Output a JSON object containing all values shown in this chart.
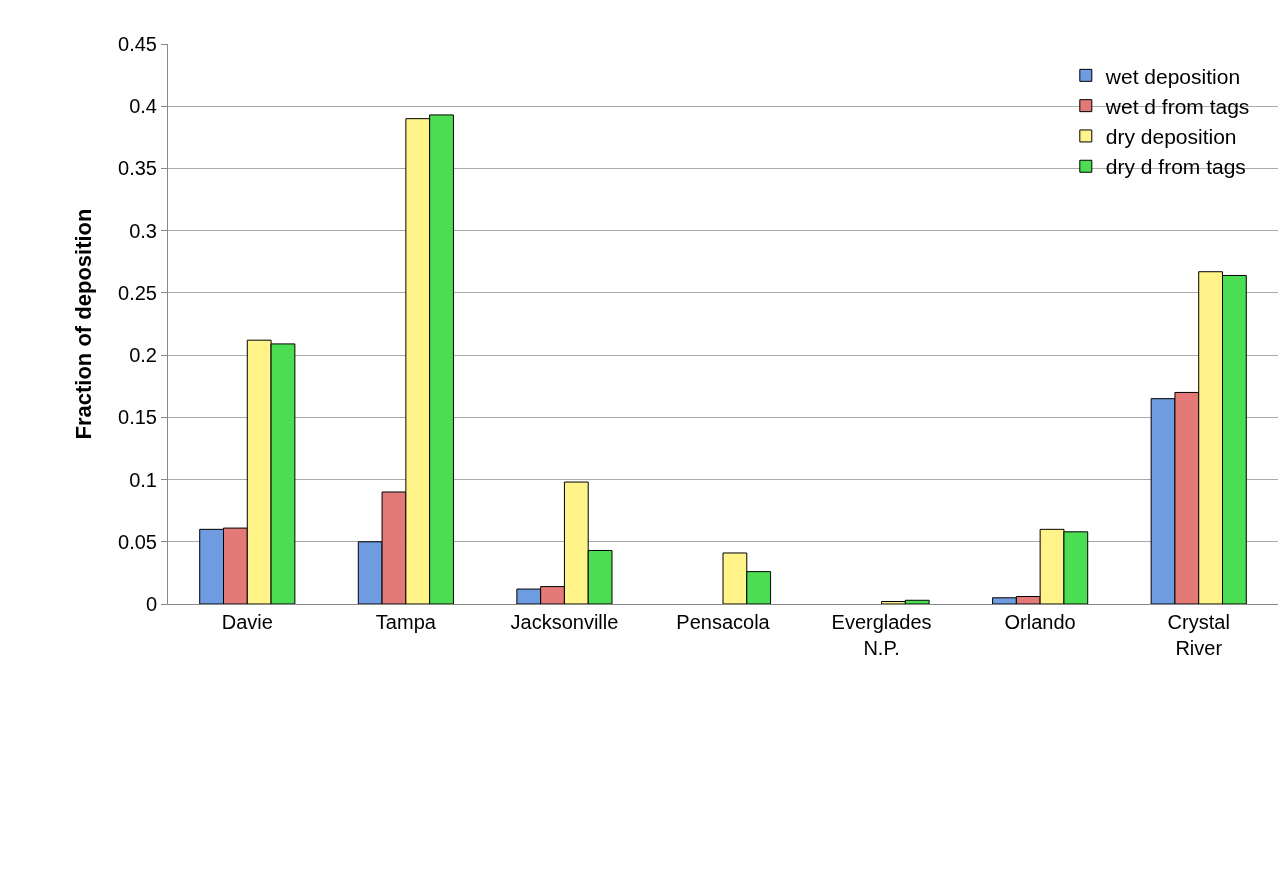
{
  "chart_data": {
    "type": "bar",
    "ylabel": "Fraction of deposition",
    "categories": [
      "Davie",
      "Tampa",
      "Jacksonville",
      "Pensacola",
      "Everglades\nN.P.",
      "Orlando",
      "Crystal\nRiver"
    ],
    "series": [
      {
        "name": "wet deposition",
        "color": "#6f9be0",
        "values": [
          0.06,
          0.05,
          0.012,
          0,
          0,
          0.005,
          0.165
        ]
      },
      {
        "name": "wet d from tags",
        "color": "#e47a78",
        "values": [
          0.061,
          0.09,
          0.014,
          0,
          0,
          0.006,
          0.17
        ]
      },
      {
        "name": "dry deposition",
        "color": "#fff38a",
        "values": [
          0.212,
          0.39,
          0.098,
          0.041,
          0.002,
          0.06,
          0.267
        ]
      },
      {
        "name": "dry d from tags",
        "color": "#4cde52",
        "values": [
          0.209,
          0.393,
          0.043,
          0.026,
          0.003,
          0.058,
          0.264
        ]
      }
    ],
    "ylim": [
      0,
      0.45
    ],
    "yticks": [
      0,
      0.05,
      0.1,
      0.15,
      0.2,
      0.25,
      0.3,
      0.35,
      0.4,
      0.45
    ],
    "grid": "y",
    "legend": "top right"
  }
}
